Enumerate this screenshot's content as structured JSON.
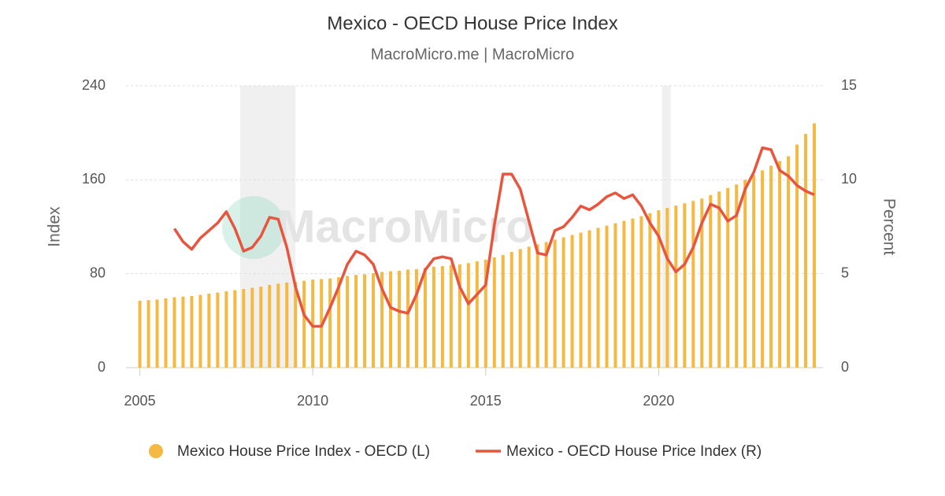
{
  "chart_data": {
    "type": "bar-line",
    "title": "Mexico - OECD House Price Index",
    "subtitle": "MacroMicro.me | MacroMicro",
    "watermark": "MacroMicro",
    "y_label": "Index",
    "y2_label": "Percent",
    "xlim": [
      2004.6,
      2024.75
    ],
    "xticks": [
      2005,
      2010,
      2015,
      2020
    ],
    "ylim": [
      0,
      240
    ],
    "yticks": [
      0,
      80,
      160,
      240
    ],
    "y2lim": [
      0,
      15
    ],
    "y2ticks": [
      0,
      5,
      10,
      15
    ],
    "grid": true,
    "legend": "bottom",
    "shaded": [
      [
        2007.9,
        2009.5
      ],
      [
        2020.1,
        2020.35
      ]
    ],
    "x": [
      2005,
      2005.25,
      2005.5,
      2005.75,
      2006,
      2006.25,
      2006.5,
      2006.75,
      2007,
      2007.25,
      2007.5,
      2007.75,
      2008,
      2008.25,
      2008.5,
      2008.75,
      2009,
      2009.25,
      2009.5,
      2009.75,
      2010,
      2010.25,
      2010.5,
      2010.75,
      2011,
      2011.25,
      2011.5,
      2011.75,
      2012,
      2012.25,
      2012.5,
      2012.75,
      2013,
      2013.25,
      2013.5,
      2013.75,
      2014,
      2014.25,
      2014.5,
      2014.75,
      2015,
      2015.25,
      2015.5,
      2015.75,
      2016,
      2016.25,
      2016.5,
      2016.75,
      2017,
      2017.25,
      2017.5,
      2017.75,
      2018,
      2018.25,
      2018.5,
      2018.75,
      2019,
      2019.25,
      2019.5,
      2019.75,
      2020,
      2020.25,
      2020.5,
      2020.75,
      2021,
      2021.25,
      2021.5,
      2021.75,
      2022,
      2022.25,
      2022.5,
      2022.75,
      2023,
      2023.25,
      2023.5,
      2023.75,
      2024,
      2024.25,
      2024.5
    ],
    "series": [
      {
        "name": "Mexico House Price Index - OECD (L)",
        "type": "bar",
        "color": "#f4b942",
        "values": [
          57,
          57.5,
          58,
          59,
          60,
          60.5,
          61,
          62,
          63,
          64,
          65,
          66,
          67,
          68,
          69,
          70.5,
          71.5,
          72.5,
          73,
          74,
          75,
          75.5,
          76,
          77,
          78,
          79,
          79.5,
          80.5,
          81.5,
          82,
          82.5,
          83.5,
          84,
          85,
          86,
          86.5,
          87.5,
          88,
          89,
          90.5,
          92,
          94,
          96,
          98.5,
          101,
          103,
          105,
          107,
          109,
          111,
          113,
          115,
          117,
          119,
          121,
          123,
          125,
          127,
          129,
          131.5,
          134,
          136,
          138,
          140,
          142,
          144,
          147,
          150,
          153,
          156,
          160,
          164,
          168,
          172,
          176,
          180,
          190,
          199,
          208
        ]
      },
      {
        "name": "Mexico - OECD House Price Index (R)",
        "type": "line",
        "axis": "y2",
        "color": "#e8553e",
        "values": [
          null,
          null,
          null,
          null,
          7.4,
          6.7,
          6.3,
          6.9,
          7.3,
          7.7,
          8.3,
          7.4,
          6.2,
          6.4,
          7.0,
          8.0,
          7.9,
          6.4,
          4.3,
          2.8,
          2.2,
          2.2,
          3.2,
          4.3,
          5.5,
          6.2,
          6.0,
          5.5,
          4.2,
          3.2,
          3.0,
          2.9,
          3.9,
          5.2,
          5.8,
          5.9,
          5.8,
          4.3,
          3.4,
          3.9,
          4.4,
          7.6,
          10.3,
          10.3,
          9.5,
          7.8,
          6.1,
          6.0,
          7.3,
          7.5,
          8.0,
          8.6,
          8.4,
          8.7,
          9.1,
          9.3,
          9.0,
          9.2,
          8.6,
          7.7,
          7.0,
          5.8,
          5.1,
          5.5,
          6.4,
          7.7,
          8.7,
          8.5,
          7.8,
          8.1,
          9.5,
          10.4,
          11.7,
          11.6,
          10.5,
          10.2,
          9.7,
          9.4,
          9.2
        ]
      }
    ]
  }
}
